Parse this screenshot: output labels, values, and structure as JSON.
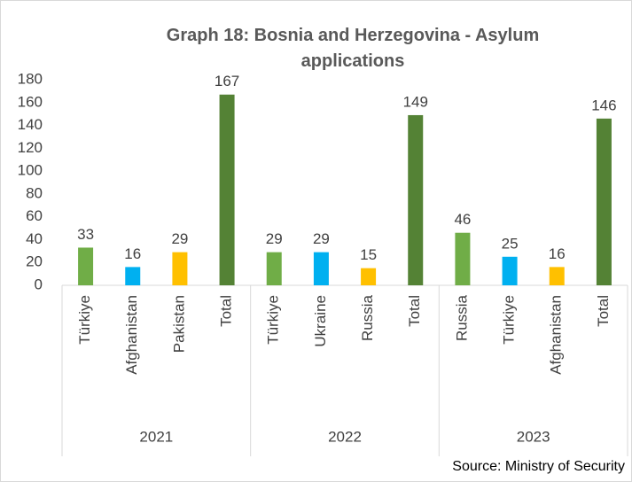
{
  "chart_data": {
    "type": "bar",
    "title": "Graph 18: Bosnia and Herzegovina - Asylum applications",
    "source": "Source: Ministry of Security",
    "groups": [
      {
        "name": "2021",
        "categories": [
          "Türkiye",
          "Afghanistan",
          "Pakistan",
          "Total"
        ],
        "values": [
          33,
          16,
          29,
          167
        ]
      },
      {
        "name": "2022",
        "categories": [
          "Türkiye",
          "Ukraine",
          "Russia",
          "Total"
        ],
        "values": [
          29,
          29,
          15,
          149
        ]
      },
      {
        "name": "2023",
        "categories": [
          "Russia",
          "Türkiye",
          "Afghanistan",
          "Total"
        ],
        "values": [
          46,
          25,
          16,
          146
        ]
      }
    ],
    "colors": [
      "#70ad47",
      "#00b0f0",
      "#ffc000",
      "#548235"
    ],
    "ylim": [
      0,
      180
    ],
    "yticks": [
      0,
      20,
      40,
      60,
      80,
      100,
      120,
      140,
      160,
      180
    ],
    "grid": false
  }
}
